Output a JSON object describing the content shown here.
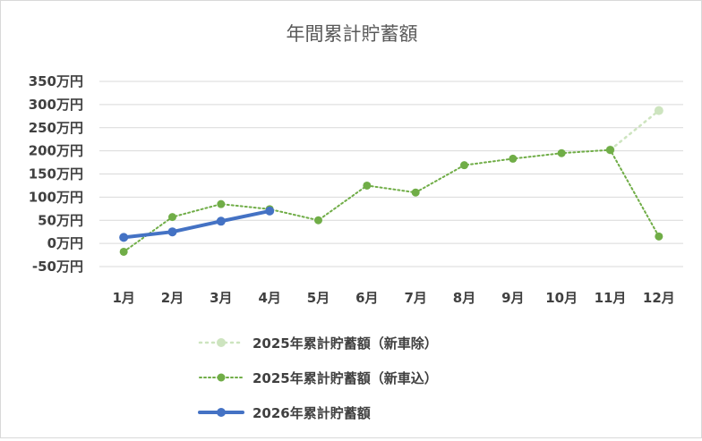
{
  "chart_data": {
    "type": "line",
    "title": "年間累計貯蓄額",
    "xlabel": "",
    "ylabel": "",
    "categories": [
      "1月",
      "2月",
      "3月",
      "4月",
      "5月",
      "6月",
      "7月",
      "8月",
      "9月",
      "10月",
      "11月",
      "12月"
    ],
    "y_ticks": [
      "-50万円",
      "0万円",
      "50万円",
      "100万円",
      "150万円",
      "200万円",
      "250万円",
      "300万円",
      "350万円"
    ],
    "ylim": [
      -50,
      350
    ],
    "grid": true,
    "legend_position": "bottom",
    "series": [
      {
        "name": "2025年累計貯蓄額（新車除）",
        "color": "#c5e0b4",
        "style": "dotted-faded",
        "values": [
          null,
          null,
          null,
          null,
          null,
          null,
          null,
          null,
          null,
          null,
          202,
          287
        ]
      },
      {
        "name": "2025年累計貯蓄額（新車込）",
        "color": "#70ad47",
        "style": "dotted",
        "values": [
          -18,
          57,
          85,
          74,
          50,
          125,
          110,
          169,
          183,
          195,
          202,
          15
        ]
      },
      {
        "name": "2026年累計貯蓄額",
        "color": "#4472c4",
        "style": "solid",
        "values": [
          13,
          25,
          48,
          70,
          null,
          null,
          null,
          null,
          null,
          null,
          null,
          null
        ]
      }
    ]
  }
}
